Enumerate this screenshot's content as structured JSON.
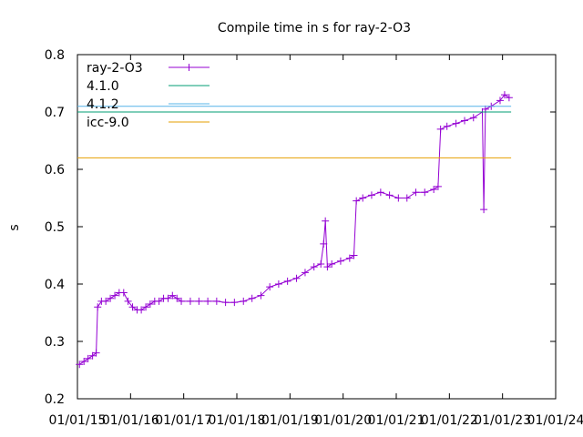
{
  "chart_data": {
    "type": "line",
    "title": "Compile time in s for ray-2-O3",
    "ylabel": "s",
    "xlabel": "",
    "ylim": [
      0.2,
      0.8
    ],
    "yticks": [
      0.2,
      0.3,
      0.4,
      0.5,
      0.6,
      0.7,
      0.8
    ],
    "ytick_labels": [
      "0.2",
      "0.3",
      "0.4",
      "0.5",
      "0.6",
      "0.7",
      "0.8"
    ],
    "xlim": [
      "2015-01-01",
      "2024-01-01"
    ],
    "xtick_labels": [
      "01/01/15",
      "01/01/16",
      "01/01/17",
      "01/01/18",
      "01/01/19",
      "01/01/20",
      "01/01/21",
      "01/01/22",
      "01/01/23",
      "01/01/24"
    ],
    "legend_position": "top-left",
    "series": [
      {
        "name": "ray-2-O3",
        "color": "#9400d3",
        "marker": "plus",
        "points": [
          [
            "2015-01-15",
            0.26
          ],
          [
            "2015-02-15",
            0.265
          ],
          [
            "2015-03-15",
            0.27
          ],
          [
            "2015-04-15",
            0.275
          ],
          [
            "2015-05-10",
            0.28
          ],
          [
            "2015-05-20",
            0.36
          ],
          [
            "2015-06-15",
            0.37
          ],
          [
            "2015-07-15",
            0.37
          ],
          [
            "2015-08-15",
            0.375
          ],
          [
            "2015-09-15",
            0.38
          ],
          [
            "2015-10-15",
            0.385
          ],
          [
            "2015-11-15",
            0.385
          ],
          [
            "2015-12-15",
            0.37
          ],
          [
            "2016-01-15",
            0.36
          ],
          [
            "2016-02-15",
            0.355
          ],
          [
            "2016-03-15",
            0.355
          ],
          [
            "2016-04-15",
            0.36
          ],
          [
            "2016-05-15",
            0.365
          ],
          [
            "2016-06-15",
            0.37
          ],
          [
            "2016-07-15",
            0.37
          ],
          [
            "2016-08-15",
            0.375
          ],
          [
            "2016-09-15",
            0.375
          ],
          [
            "2016-10-15",
            0.38
          ],
          [
            "2016-11-15",
            0.375
          ],
          [
            "2016-12-15",
            0.37
          ],
          [
            "2017-02-15",
            0.37
          ],
          [
            "2017-04-15",
            0.37
          ],
          [
            "2017-06-15",
            0.37
          ],
          [
            "2017-08-15",
            0.37
          ],
          [
            "2017-10-15",
            0.368
          ],
          [
            "2017-12-15",
            0.368
          ],
          [
            "2018-02-15",
            0.37
          ],
          [
            "2018-04-15",
            0.375
          ],
          [
            "2018-06-15",
            0.38
          ],
          [
            "2018-08-15",
            0.395
          ],
          [
            "2018-10-15",
            0.4
          ],
          [
            "2018-12-15",
            0.405
          ],
          [
            "2019-02-15",
            0.41
          ],
          [
            "2019-04-15",
            0.42
          ],
          [
            "2019-06-15",
            0.43
          ],
          [
            "2019-08-01",
            0.435
          ],
          [
            "2019-08-20",
            0.47
          ],
          [
            "2019-09-01",
            0.51
          ],
          [
            "2019-09-15",
            0.43
          ],
          [
            "2019-10-15",
            0.435
          ],
          [
            "2019-12-15",
            0.44
          ],
          [
            "2020-02-15",
            0.445
          ],
          [
            "2020-03-15",
            0.45
          ],
          [
            "2020-04-01",
            0.545
          ],
          [
            "2020-05-15",
            0.55
          ],
          [
            "2020-07-15",
            0.555
          ],
          [
            "2020-09-15",
            0.56
          ],
          [
            "2020-11-15",
            0.555
          ],
          [
            "2021-01-15",
            0.55
          ],
          [
            "2021-03-15",
            0.55
          ],
          [
            "2021-05-15",
            0.56
          ],
          [
            "2021-07-15",
            0.56
          ],
          [
            "2021-09-15",
            0.565
          ],
          [
            "2021-10-15",
            0.57
          ],
          [
            "2021-11-01",
            0.67
          ],
          [
            "2021-12-15",
            0.675
          ],
          [
            "2022-02-15",
            0.68
          ],
          [
            "2022-04-15",
            0.685
          ],
          [
            "2022-06-15",
            0.69
          ],
          [
            "2022-08-15",
            0.7
          ],
          [
            "2022-08-25",
            0.53
          ],
          [
            "2022-09-05",
            0.705
          ],
          [
            "2022-10-15",
            0.71
          ],
          [
            "2022-12-15",
            0.72
          ],
          [
            "2023-01-15",
            0.73
          ],
          [
            "2023-02-15",
            0.725
          ]
        ]
      },
      {
        "name": "4.1.0",
        "color": "#009e73",
        "points": [
          [
            "2015-01-01",
            0.7
          ],
          [
            "2023-03-01",
            0.7
          ]
        ]
      },
      {
        "name": "4.1.2",
        "color": "#56b4e9",
        "points": [
          [
            "2015-01-01",
            0.71
          ],
          [
            "2023-03-01",
            0.71
          ]
        ]
      },
      {
        "name": "icc-9.0",
        "color": "#e69f00",
        "points": [
          [
            "2015-01-01",
            0.62
          ],
          [
            "2023-03-01",
            0.62
          ]
        ]
      }
    ]
  }
}
